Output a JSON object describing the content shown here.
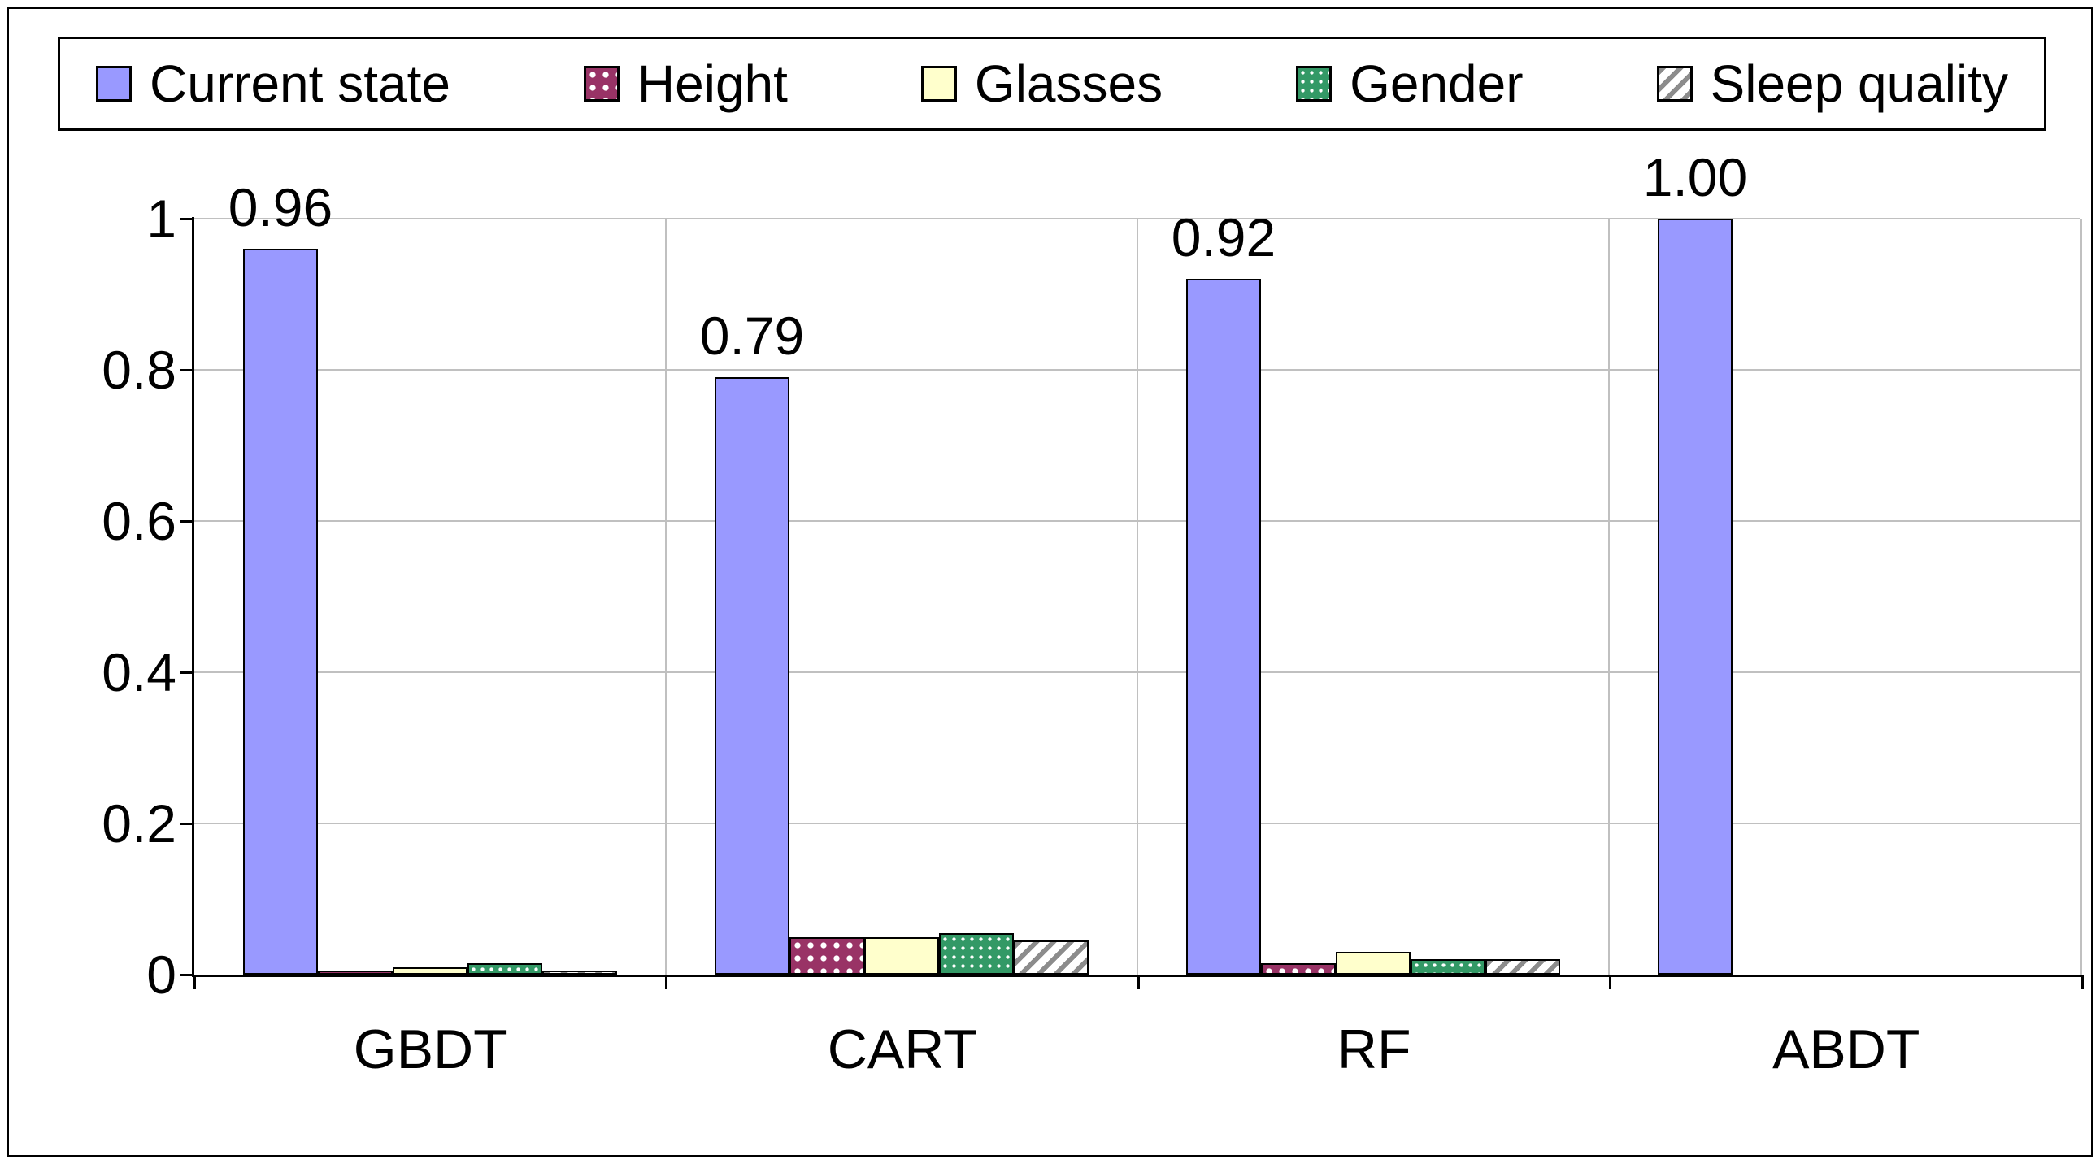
{
  "chart_data": {
    "type": "bar",
    "title": "",
    "categories": [
      "GBDT",
      "CART",
      "RF",
      "ABDT"
    ],
    "series": [
      {
        "name": "Current state",
        "pattern": "solid",
        "color": "#9999FF",
        "values": [
          0.96,
          0.79,
          0.92,
          1.0
        ],
        "labels": [
          "0.96",
          "0.79",
          "0.92",
          "1.00"
        ]
      },
      {
        "name": "Height",
        "pattern": "dots",
        "color": "#993366",
        "values": [
          0.005,
          0.05,
          0.015,
          0
        ]
      },
      {
        "name": "Glasses",
        "pattern": "solid",
        "color": "#FFFFCC",
        "values": [
          0.01,
          0.05,
          0.03,
          0
        ]
      },
      {
        "name": "Gender",
        "pattern": "grid",
        "color": "#339966",
        "values": [
          0.015,
          0.055,
          0.02,
          0
        ]
      },
      {
        "name": "Sleep quality",
        "pattern": "diagonal",
        "color": "#8C8C8C",
        "values": [
          0.005,
          0.045,
          0.02,
          0
        ]
      }
    ],
    "xlabel": "",
    "ylabel": "",
    "ylim": [
      0,
      1
    ],
    "yticks": [
      {
        "value": 0,
        "label": "0"
      },
      {
        "value": 0.2,
        "label": "0.2"
      },
      {
        "value": 0.4,
        "label": "0.4"
      },
      {
        "value": 0.6,
        "label": "0.6"
      },
      {
        "value": 0.8,
        "label": "0.8"
      },
      {
        "value": 1,
        "label": "1"
      }
    ],
    "grid": true,
    "vertical_category_separators": true,
    "legend_position": "top",
    "colors": {
      "gridline": "#c0c0c0",
      "axis": "#000000",
      "background": "#ffffff"
    }
  }
}
